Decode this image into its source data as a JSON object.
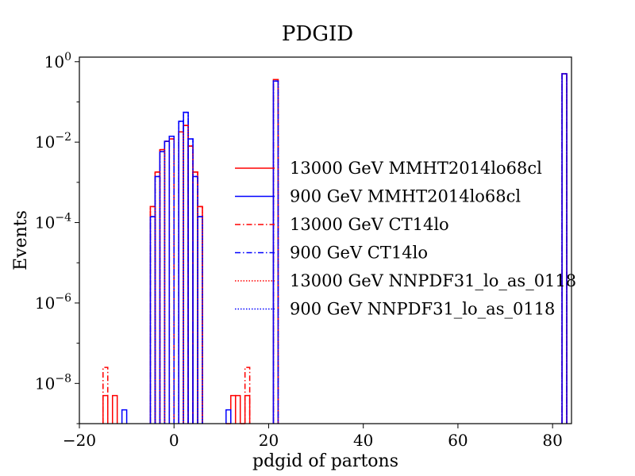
{
  "chart_data": {
    "type": "histogram",
    "title": "PDGID",
    "xlabel": "pdgid of partons",
    "ylabel": "Events",
    "xscale": "linear",
    "yscale": "log",
    "xlim": [
      -20,
      84
    ],
    "ylim": [
      1e-09,
      1.3
    ],
    "x_ticks": [
      {
        "value": -20,
        "label": "−20"
      },
      {
        "value": 0,
        "label": "0"
      },
      {
        "value": 20,
        "label": "20"
      },
      {
        "value": 40,
        "label": "40"
      },
      {
        "value": 60,
        "label": "60"
      },
      {
        "value": 80,
        "label": "80"
      }
    ],
    "y_ticks": [
      {
        "value": 1,
        "base": "10",
        "exp": "0"
      },
      {
        "value": 0.01,
        "base": "10",
        "exp": "−2"
      },
      {
        "value": 0.0001,
        "base": "10",
        "exp": "−4"
      },
      {
        "value": 1e-06,
        "base": "10",
        "exp": "−6"
      },
      {
        "value": 1e-08,
        "base": "10",
        "exp": "−8"
      }
    ],
    "grid": false,
    "legend_position": "center",
    "series": [
      {
        "name": "13000 GeV MMHT2014lo68cl",
        "color": "#ff0000",
        "linestyle": "solid",
        "bins": [
          {
            "x0": -15,
            "x1": -14,
            "y": 5e-09
          },
          {
            "x0": -13,
            "x1": -12,
            "y": 5e-09
          },
          {
            "x0": -5,
            "x1": -4,
            "y": 0.00025
          },
          {
            "x0": -4,
            "x1": -3,
            "y": 0.0018
          },
          {
            "x0": -3,
            "x1": -2,
            "y": 0.0065
          },
          {
            "x0": -2,
            "x1": -1,
            "y": 0.0105
          },
          {
            "x0": -1,
            "x1": 0,
            "y": 0.012
          },
          {
            "x0": 1,
            "x1": 2,
            "y": 0.018
          },
          {
            "x0": 2,
            "x1": 3,
            "y": 0.026
          },
          {
            "x0": 3,
            "x1": 4,
            "y": 0.008
          },
          {
            "x0": 4,
            "x1": 5,
            "y": 0.0018
          },
          {
            "x0": 5,
            "x1": 6,
            "y": 0.00025
          },
          {
            "x0": 11,
            "x1": 12,
            "y": 1e-09
          },
          {
            "x0": 12,
            "x1": 13,
            "y": 5e-09
          },
          {
            "x0": 13,
            "x1": 14,
            "y": 5e-09
          },
          {
            "x0": 14,
            "x1": 15,
            "y": 1e-09
          },
          {
            "x0": 15,
            "x1": 16,
            "y": 5e-09
          },
          {
            "x0": 21,
            "x1": 22,
            "y": 0.36
          },
          {
            "x0": 82,
            "x1": 83,
            "y": 0.5
          }
        ]
      },
      {
        "name": "900 GeV MMHT2014lo68cl",
        "color": "#0000ff",
        "linestyle": "solid",
        "bins": [
          {
            "x0": -11,
            "x1": -10,
            "y": 2.2e-09
          },
          {
            "x0": -5,
            "x1": -4,
            "y": 0.00014
          },
          {
            "x0": -4,
            "x1": -3,
            "y": 0.0014
          },
          {
            "x0": -3,
            "x1": -2,
            "y": 0.0058
          },
          {
            "x0": -2,
            "x1": -1,
            "y": 0.0105
          },
          {
            "x0": -1,
            "x1": 0,
            "y": 0.014
          },
          {
            "x0": 1,
            "x1": 2,
            "y": 0.033
          },
          {
            "x0": 2,
            "x1": 3,
            "y": 0.055
          },
          {
            "x0": 3,
            "x1": 4,
            "y": 0.012
          },
          {
            "x0": 4,
            "x1": 5,
            "y": 0.0014
          },
          {
            "x0": 5,
            "x1": 6,
            "y": 0.00014
          },
          {
            "x0": 11,
            "x1": 12,
            "y": 2.2e-09
          },
          {
            "x0": 21,
            "x1": 22,
            "y": 0.33
          },
          {
            "x0": 82,
            "x1": 83,
            "y": 0.5
          }
        ]
      },
      {
        "name": "13000 GeV CT14lo",
        "color": "#ff0000",
        "linestyle": "dashdot",
        "bins": [
          {
            "x0": -15,
            "x1": -14,
            "y": 2.5e-08
          },
          {
            "x0": -5,
            "x1": -4,
            "y": 0.00025
          },
          {
            "x0": -4,
            "x1": -3,
            "y": 0.0018
          },
          {
            "x0": -3,
            "x1": -2,
            "y": 0.0065
          },
          {
            "x0": -2,
            "x1": -1,
            "y": 0.0105
          },
          {
            "x0": -1,
            "x1": 0,
            "y": 0.012
          },
          {
            "x0": 1,
            "x1": 2,
            "y": 0.018
          },
          {
            "x0": 2,
            "x1": 3,
            "y": 0.026
          },
          {
            "x0": 3,
            "x1": 4,
            "y": 0.008
          },
          {
            "x0": 4,
            "x1": 5,
            "y": 0.0018
          },
          {
            "x0": 5,
            "x1": 6,
            "y": 0.00025
          },
          {
            "x0": 15,
            "x1": 16,
            "y": 2.5e-08
          },
          {
            "x0": 21,
            "x1": 22,
            "y": 0.36
          },
          {
            "x0": 82,
            "x1": 83,
            "y": 0.5
          }
        ]
      },
      {
        "name": "900 GeV CT14lo",
        "color": "#0000ff",
        "linestyle": "dashdot",
        "bins": [
          {
            "x0": -5,
            "x1": -4,
            "y": 0.00014
          },
          {
            "x0": -4,
            "x1": -3,
            "y": 0.0014
          },
          {
            "x0": -3,
            "x1": -2,
            "y": 0.0058
          },
          {
            "x0": -2,
            "x1": -1,
            "y": 0.0105
          },
          {
            "x0": -1,
            "x1": 0,
            "y": 0.014
          },
          {
            "x0": 1,
            "x1": 2,
            "y": 0.033
          },
          {
            "x0": 2,
            "x1": 3,
            "y": 0.055
          },
          {
            "x0": 3,
            "x1": 4,
            "y": 0.012
          },
          {
            "x0": 4,
            "x1": 5,
            "y": 0.0014
          },
          {
            "x0": 5,
            "x1": 6,
            "y": 0.00014
          },
          {
            "x0": 21,
            "x1": 22,
            "y": 0.33
          },
          {
            "x0": 82,
            "x1": 83,
            "y": 0.5
          }
        ]
      },
      {
        "name": "13000 GeV NNPDF31_lo_as_0118",
        "color": "#ff0000",
        "linestyle": "dotted",
        "bins": [
          {
            "x0": -5,
            "x1": -4,
            "y": 0.00025
          },
          {
            "x0": -4,
            "x1": -3,
            "y": 0.0018
          },
          {
            "x0": -3,
            "x1": -2,
            "y": 0.0065
          },
          {
            "x0": -2,
            "x1": -1,
            "y": 0.0105
          },
          {
            "x0": -1,
            "x1": 0,
            "y": 0.012
          },
          {
            "x0": 1,
            "x1": 2,
            "y": 0.018
          },
          {
            "x0": 2,
            "x1": 3,
            "y": 0.026
          },
          {
            "x0": 3,
            "x1": 4,
            "y": 0.008
          },
          {
            "x0": 4,
            "x1": 5,
            "y": 0.0018
          },
          {
            "x0": 5,
            "x1": 6,
            "y": 0.00025
          },
          {
            "x0": 21,
            "x1": 22,
            "y": 0.36
          },
          {
            "x0": 82,
            "x1": 83,
            "y": 0.5
          }
        ]
      },
      {
        "name": "900 GeV NNPDF31_lo_as_0118",
        "color": "#0000ff",
        "linestyle": "dotted",
        "bins": [
          {
            "x0": -5,
            "x1": -4,
            "y": 0.00014
          },
          {
            "x0": -4,
            "x1": -3,
            "y": 0.0014
          },
          {
            "x0": -3,
            "x1": -2,
            "y": 0.0058
          },
          {
            "x0": -2,
            "x1": -1,
            "y": 0.0105
          },
          {
            "x0": -1,
            "x1": 0,
            "y": 0.014
          },
          {
            "x0": 1,
            "x1": 2,
            "y": 0.033
          },
          {
            "x0": 2,
            "x1": 3,
            "y": 0.055
          },
          {
            "x0": 3,
            "x1": 4,
            "y": 0.012
          },
          {
            "x0": 4,
            "x1": 5,
            "y": 0.0014
          },
          {
            "x0": 5,
            "x1": 6,
            "y": 0.00014
          },
          {
            "x0": 21,
            "x1": 22,
            "y": 0.33
          },
          {
            "x0": 82,
            "x1": 83,
            "y": 0.5
          }
        ]
      }
    ]
  }
}
